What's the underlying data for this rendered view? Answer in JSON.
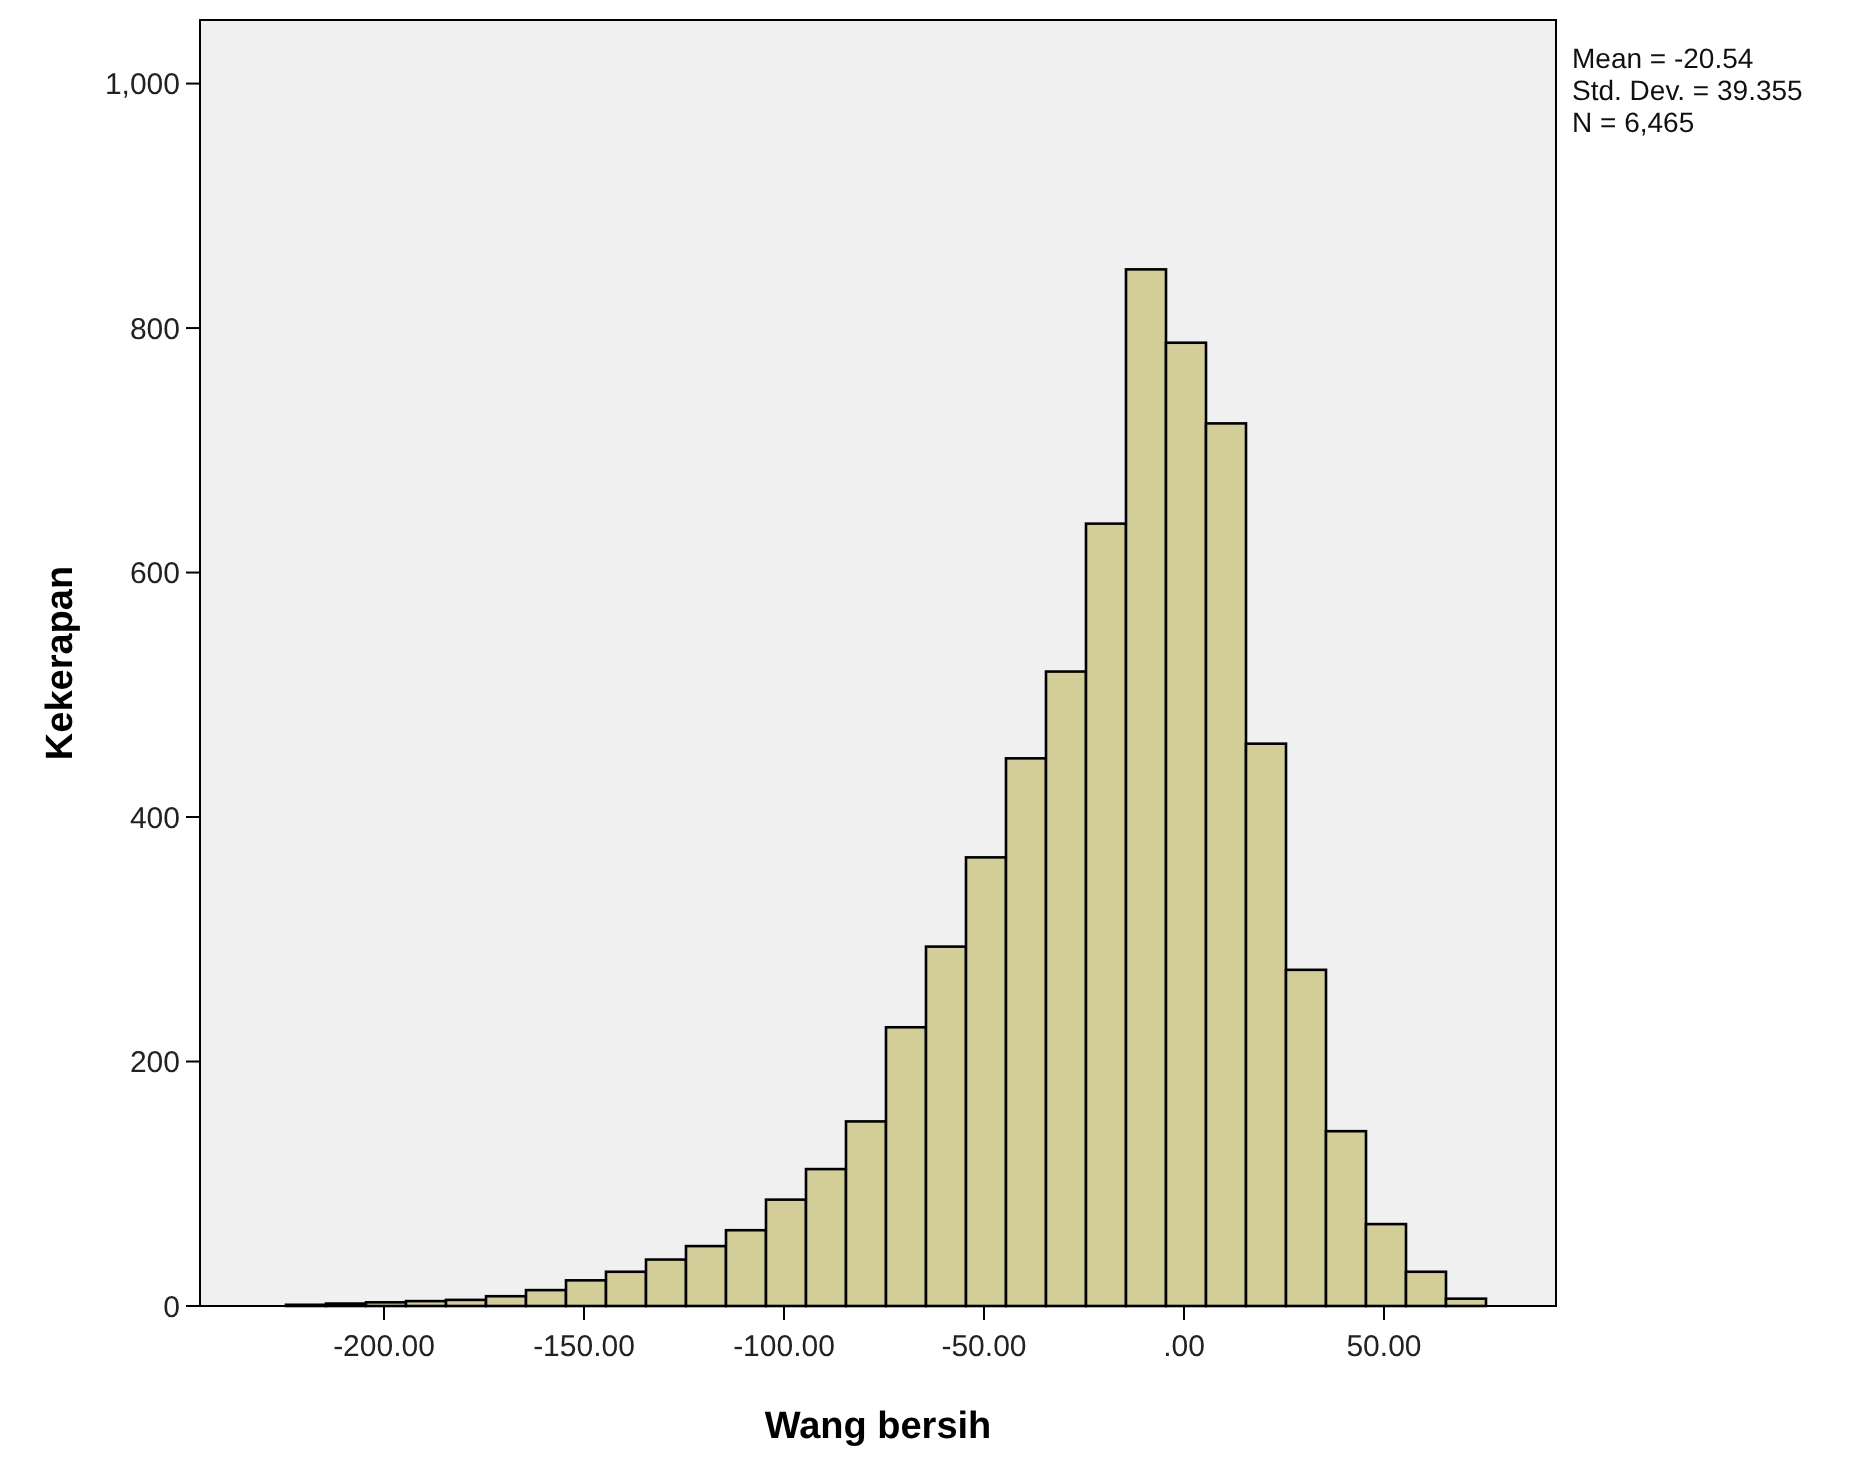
{
  "chart_data": {
    "type": "histogram",
    "xlabel": "Wang bersih",
    "ylabel": "Kekerapan",
    "bins": [
      -224.5,
      -214.5,
      -204.5,
      -194.5,
      -184.5,
      -174.5,
      -164.5,
      -154.5,
      -144.5,
      -134.5,
      -124.5,
      -114.5,
      -104.5,
      -94.5,
      -84.5,
      -74.5,
      -64.5,
      -54.5,
      -44.5,
      -34.5,
      -24.5,
      -14.5,
      -4.5,
      5.5,
      15.5,
      25.5,
      35.5,
      45.5,
      55.5,
      65.5,
      75.5
    ],
    "values": [
      1,
      2,
      3,
      4,
      5,
      8,
      13,
      21,
      28,
      38,
      49,
      62,
      87,
      112,
      151,
      228,
      294,
      367,
      448,
      519,
      640,
      848,
      788,
      722,
      460,
      275,
      143,
      67,
      28,
      6
    ],
    "color": "#d3ce97",
    "xlim": [
      -246,
      93
    ],
    "ylim": [
      0,
      1052
    ],
    "xticks": [
      {
        "value": -200,
        "label": "-200.00"
      },
      {
        "value": -150,
        "label": "-150.00"
      },
      {
        "value": -100,
        "label": "-100.00"
      },
      {
        "value": -50,
        "label": "-50.00"
      },
      {
        "value": 0,
        "label": ".00"
      },
      {
        "value": 50,
        "label": "50.00"
      }
    ],
    "yticks": [
      0,
      200,
      400,
      600,
      800,
      {
        "value": 1000,
        "label": "1,000"
      }
    ],
    "grid": false,
    "annotations": [
      "Mean = -20.54",
      "Std. Dev. = 39.355",
      "N = 6,465"
    ]
  }
}
